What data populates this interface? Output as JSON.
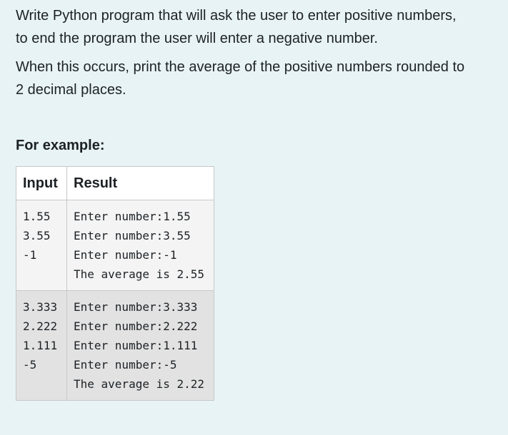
{
  "question": {
    "paragraphs": [
      "Write Python program that will ask the user to enter positive numbers,\nto end the program the user will enter a negative number.",
      "When this occurs, print the average of the positive numbers rounded to\n2 decimal places."
    ]
  },
  "example": {
    "heading": "For example:",
    "columns": {
      "input": "Input",
      "result": "Result"
    },
    "rows": [
      {
        "input": [
          "1.55",
          "3.55",
          "-1"
        ],
        "result": [
          "Enter number:1.55",
          "Enter number:3.55",
          "Enter number:-1",
          "The average is 2.55"
        ]
      },
      {
        "input": [
          "3.333",
          "2.222",
          "1.111",
          "-5"
        ],
        "result": [
          "Enter number:3.333",
          "Enter number:2.222",
          "Enter number:1.111",
          "Enter number:-5",
          "The average is 2.22"
        ]
      }
    ]
  }
}
